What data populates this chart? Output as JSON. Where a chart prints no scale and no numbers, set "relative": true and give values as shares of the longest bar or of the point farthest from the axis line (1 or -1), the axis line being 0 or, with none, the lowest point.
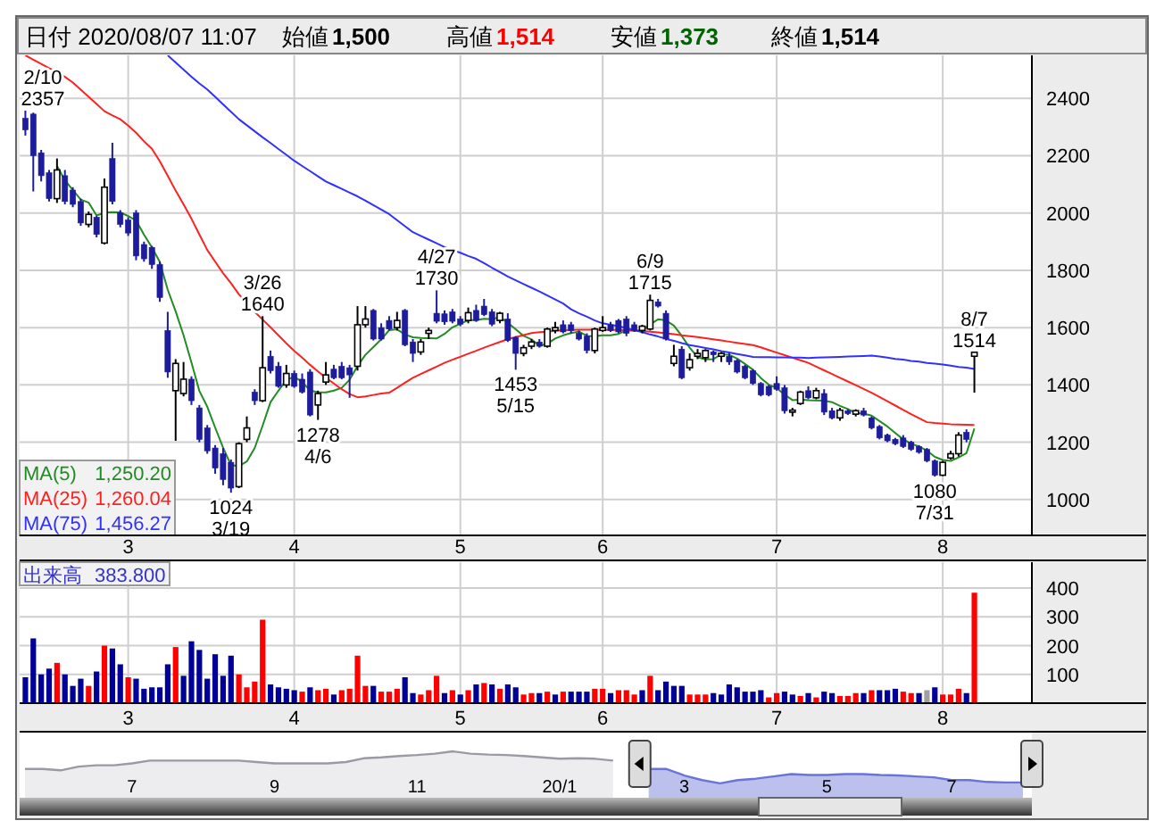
{
  "chart_data": [
    {
      "type": "other",
      "annotations": [
        "日付 2020/08/07 11:07",
        "始値",
        "1,500",
        "高値",
        "1,514",
        "安値",
        "1,373",
        "終値",
        "1,514"
      ],
      "colors": [
        "#000000",
        "#000000",
        "#000000",
        "#000000",
        "#ff0000",
        "#000000",
        "#006400",
        "#000000",
        "#000000"
      ]
    },
    {
      "type": "candlestick",
      "categories": [
        null,
        null,
        null,
        null,
        null,
        null,
        null,
        null,
        null,
        null,
        null,
        null,
        null,
        "3",
        null,
        null,
        null,
        null,
        null,
        null,
        null,
        null,
        null,
        null,
        null,
        null,
        null,
        null,
        null,
        null,
        null,
        null,
        null,
        null,
        "4",
        null,
        null,
        null,
        null,
        null,
        null,
        null,
        null,
        null,
        null,
        null,
        null,
        null,
        null,
        null,
        null,
        null,
        null,
        null,
        null,
        "5",
        null,
        null,
        null,
        null,
        null,
        null,
        null,
        null,
        null,
        null,
        null,
        null,
        null,
        null,
        null,
        null,
        null,
        "6",
        null,
        null,
        null,
        null,
        null,
        null,
        null,
        null,
        null,
        null,
        null,
        null,
        null,
        null,
        null,
        null,
        null,
        null,
        null,
        null,
        null,
        "7",
        null,
        null,
        null,
        null,
        null,
        null,
        null,
        null,
        null,
        null,
        null,
        null,
        null,
        null,
        null,
        null,
        null,
        null,
        null,
        null,
        "8",
        null,
        null,
        null,
        null
      ],
      "ohlc": [
        [
          2330,
          2357,
          2270,
          2290
        ],
        [
          2345,
          2350,
          2075,
          2200
        ],
        [
          2210,
          2220,
          2110,
          2130
        ],
        [
          2140,
          2150,
          2040,
          2050
        ],
        [
          2050,
          2190,
          2035,
          2150
        ],
        [
          2130,
          2150,
          2030,
          2040
        ],
        [
          2080,
          2090,
          2020,
          2030
        ],
        [
          2040,
          2050,
          1955,
          1965
        ],
        [
          1960,
          2005,
          1950,
          1995
        ],
        [
          1985,
          1990,
          1915,
          1925
        ],
        [
          1895,
          2120,
          1890,
          2090
        ],
        [
          2190,
          2245,
          2030,
          2040
        ],
        [
          2000,
          2010,
          1950,
          1960
        ],
        [
          1975,
          1985,
          1920,
          1930
        ],
        [
          2000,
          2010,
          1835,
          1850
        ],
        [
          1890,
          1900,
          1830,
          1840
        ],
        [
          1880,
          1885,
          1805,
          1820
        ],
        [
          1820,
          1830,
          1690,
          1705
        ],
        [
          1590,
          1655,
          1425,
          1445
        ],
        [
          1380,
          1490,
          1205,
          1475
        ],
        [
          1370,
          1480,
          1360,
          1420
        ],
        [
          1420,
          1430,
          1330,
          1345
        ],
        [
          1320,
          1330,
          1200,
          1210
        ],
        [
          1250,
          1260,
          1160,
          1170
        ],
        [
          1180,
          1190,
          1090,
          1110
        ],
        [
          1160,
          1180,
          1050,
          1070
        ],
        [
          1130,
          1140,
          1024,
          1040
        ],
        [
          1045,
          1200,
          1040,
          1195
        ],
        [
          1210,
          1290,
          1200,
          1250
        ],
        [
          1375,
          1385,
          1330,
          1345
        ],
        [
          1345,
          1640,
          1340,
          1460
        ],
        [
          1500,
          1520,
          1440,
          1450
        ],
        [
          1465,
          1480,
          1390,
          1395
        ],
        [
          1400,
          1470,
          1390,
          1440
        ],
        [
          1440,
          1450,
          1390,
          1395
        ],
        [
          1420,
          1440,
          1370,
          1375
        ],
        [
          1445,
          1455,
          1290,
          1295
        ],
        [
          1330,
          1380,
          1278,
          1370
        ],
        [
          1410,
          1480,
          1400,
          1435
        ],
        [
          1455,
          1470,
          1420,
          1425
        ],
        [
          1465,
          1480,
          1420,
          1425
        ],
        [
          1460,
          1470,
          1355,
          1435
        ],
        [
          1465,
          1675,
          1450,
          1610
        ],
        [
          1610,
          1675,
          1600,
          1630
        ],
        [
          1660,
          1665,
          1555,
          1560
        ],
        [
          1600,
          1615,
          1555,
          1560
        ],
        [
          1625,
          1640,
          1590,
          1595
        ],
        [
          1600,
          1655,
          1590,
          1625
        ],
        [
          1660,
          1665,
          1535,
          1540
        ],
        [
          1550,
          1560,
          1480,
          1510
        ],
        [
          1515,
          1560,
          1505,
          1550
        ],
        [
          1580,
          1600,
          1560,
          1590
        ],
        [
          1650,
          1730,
          1615,
          1622
        ],
        [
          1648,
          1660,
          1610,
          1620
        ],
        [
          1655,
          1665,
          1615,
          1622
        ],
        [
          1630,
          1640,
          1605,
          1612
        ],
        [
          1625,
          1670,
          1615,
          1652
        ],
        [
          1660,
          1680,
          1620,
          1625
        ],
        [
          1675,
          1700,
          1640,
          1645
        ],
        [
          1655,
          1665,
          1605,
          1612
        ],
        [
          1625,
          1655,
          1615,
          1650
        ],
        [
          1630,
          1650,
          1550,
          1555
        ],
        [
          1565,
          1570,
          1453,
          1510
        ],
        [
          1510,
          1540,
          1500,
          1530
        ],
        [
          1535,
          1560,
          1525,
          1550
        ],
        [
          1550,
          1560,
          1530,
          1535
        ],
        [
          1535,
          1600,
          1530,
          1595
        ],
        [
          1590,
          1620,
          1580,
          1600
        ],
        [
          1610,
          1625,
          1580,
          1585
        ],
        [
          1610,
          1620,
          1580,
          1590
        ],
        [
          1580,
          1590,
          1555,
          1560
        ],
        [
          1570,
          1580,
          1510,
          1520
        ],
        [
          1520,
          1600,
          1510,
          1595
        ],
        [
          1590,
          1640,
          1585,
          1600
        ],
        [
          1610,
          1620,
          1585,
          1590
        ],
        [
          1625,
          1630,
          1580,
          1585
        ],
        [
          1630,
          1640,
          1570,
          1580
        ],
        [
          1610,
          1620,
          1585,
          1590
        ],
        [
          1590,
          1610,
          1580,
          1605
        ],
        [
          1595,
          1715,
          1590,
          1695
        ],
        [
          1690,
          1700,
          1670,
          1675
        ],
        [
          1650,
          1660,
          1555,
          1560
        ],
        [
          1475,
          1540,
          1465,
          1500
        ],
        [
          1525,
          1535,
          1420,
          1425
        ],
        [
          1460,
          1510,
          1450,
          1488
        ],
        [
          1500,
          1525,
          1490,
          1510
        ],
        [
          1495,
          1525,
          1480,
          1520
        ],
        [
          1515,
          1520,
          1480,
          1505
        ],
        [
          1500,
          1515,
          1480,
          1510
        ],
        [
          1500,
          1510,
          1470,
          1480
        ],
        [
          1485,
          1490,
          1440,
          1445
        ],
        [
          1465,
          1470,
          1420,
          1425
        ],
        [
          1450,
          1455,
          1400,
          1405
        ],
        [
          1405,
          1410,
          1360,
          1365
        ],
        [
          1395,
          1400,
          1360,
          1365
        ],
        [
          1405,
          1430,
          1380,
          1385
        ],
        [
          1390,
          1400,
          1300,
          1310
        ],
        [
          1305,
          1320,
          1290,
          1312
        ],
        [
          1335,
          1380,
          1330,
          1375
        ],
        [
          1380,
          1395,
          1350,
          1355
        ],
        [
          1355,
          1390,
          1350,
          1380
        ],
        [
          1370,
          1385,
          1295,
          1305
        ],
        [
          1310,
          1320,
          1280,
          1285
        ],
        [
          1285,
          1320,
          1275,
          1312
        ],
        [
          1310,
          1315,
          1295,
          1300
        ],
        [
          1298,
          1315,
          1290,
          1310
        ],
        [
          1310,
          1320,
          1290,
          1295
        ],
        [
          1285,
          1290,
          1245,
          1250
        ],
        [
          1255,
          1260,
          1210,
          1215
        ],
        [
          1225,
          1230,
          1200,
          1205
        ],
        [
          1210,
          1215,
          1190,
          1195
        ],
        [
          1215,
          1225,
          1180,
          1185
        ],
        [
          1200,
          1205,
          1170,
          1175
        ],
        [
          1185,
          1190,
          1160,
          1165
        ],
        [
          1175,
          1180,
          1130,
          1135
        ],
        [
          1135,
          1140,
          1080,
          1085
        ],
        [
          1085,
          1135,
          1082,
          1130
        ],
        [
          1145,
          1170,
          1140,
          1160
        ],
        [
          1160,
          1235,
          1150,
          1225
        ],
        [
          1235,
          1245,
          1200,
          1210
        ],
        [
          1500,
          1514,
          1373,
          1514
        ]
      ],
      "series": [
        {
          "type": "line",
          "name": "MA(5)",
          "color": "#228b22",
          "values": [
            null,
            null,
            null,
            null,
            2164,
            2114,
            2080,
            2047,
            2036,
            1991,
            2001,
            2003,
            2002,
            1989,
            1974,
            1924,
            1880,
            1829,
            1732,
            1657,
            1573,
            1478,
            1379,
            1324,
            1251,
            1181,
            1120,
            1117,
            1133,
            1180,
            1258,
            1340,
            1380,
            1418,
            1428,
            1411,
            1380,
            1375,
            1374,
            1380,
            1390,
            1418,
            1466,
            1505,
            1532,
            1559,
            1591,
            1594,
            1576,
            1566,
            1564,
            1563,
            1562,
            1578,
            1601,
            1613,
            1626,
            1626,
            1631,
            1629,
            1637,
            1617,
            1594,
            1571,
            1559,
            1536,
            1544,
            1562,
            1573,
            1581,
            1586,
            1571,
            1570,
            1573,
            1573,
            1578,
            1590,
            1589,
            1590,
            1611,
            1629,
            1625,
            1607,
            1571,
            1530,
            1497,
            1489,
            1490,
            1507,
            1505,
            1492,
            1473,
            1453,
            1424,
            1401,
            1389,
            1366,
            1347,
            1349,
            1347,
            1346,
            1345,
            1340,
            1327,
            1316,
            1302,
            1300,
            1293,
            1274,
            1255,
            1232,
            1210,
            1195,
            1185,
            1171,
            1149,
            1138,
            1135,
            1147,
            1162,
            1248
          ]
        },
        {
          "type": "line",
          "name": "MA(25)",
          "color": "#ff2020",
          "values": [
            2550,
            2535,
            2520,
            2505,
            2493,
            2475,
            2455,
            2430,
            2405,
            2380,
            2355,
            2340,
            2327,
            2305,
            2280,
            2250,
            2224,
            2180,
            2130,
            2078,
            2030,
            1980,
            1925,
            1871,
            1830,
            1790,
            1755,
            1716,
            1685,
            1655,
            1628,
            1601,
            1573,
            1545,
            1519,
            1495,
            1470,
            1447,
            1425,
            1405,
            1385,
            1368,
            1357,
            1360,
            1365,
            1370,
            1373,
            1390,
            1408,
            1425,
            1438,
            1451,
            1464,
            1477,
            1488,
            1498,
            1509,
            1519,
            1530,
            1540,
            1550,
            1560,
            1567,
            1574,
            1581,
            1584,
            1586,
            1589,
            1591,
            1592,
            1593,
            1593,
            1593,
            1593,
            1592,
            1592,
            1591,
            1591,
            1588,
            1586,
            1583,
            1580,
            1577,
            1573,
            1570,
            1567,
            1563,
            1559,
            1555,
            1551,
            1547,
            1543,
            1539,
            1531,
            1522,
            1513,
            1504,
            1495,
            1486,
            1477,
            1464,
            1451,
            1438,
            1425,
            1412,
            1399,
            1386,
            1373,
            1358,
            1343,
            1328,
            1313,
            1298,
            1284,
            1270,
            1267,
            1265,
            1263,
            1262,
            1261,
            1260
          ]
        },
        {
          "type": "line",
          "name": "MA(75)",
          "color": "#3030ff",
          "values": [
            null,
            null,
            null,
            null,
            null,
            null,
            null,
            null,
            null,
            null,
            null,
            null,
            null,
            null,
            null,
            null,
            null,
            null,
            2550,
            2525,
            2500,
            2475,
            2452,
            2431,
            2405,
            2379,
            2353,
            2327,
            2306,
            2285,
            2264,
            2244,
            2223,
            2203,
            2182,
            2164,
            2146,
            2128,
            2110,
            2097,
            2084,
            2071,
            2058,
            2043,
            2027,
            2012,
            1996,
            1975,
            1954,
            1933,
            1920,
            1907,
            1894,
            1881,
            1871,
            1861,
            1850,
            1840,
            1825,
            1809,
            1794,
            1778,
            1765,
            1752,
            1739,
            1726,
            1712,
            1698,
            1684,
            1664,
            1650,
            1638,
            1625,
            1615,
            1610,
            1605,
            1598,
            1591,
            1584,
            1576,
            1569,
            1561,
            1554,
            1546,
            1539,
            1534,
            1529,
            1524,
            1518,
            1513,
            1508,
            1503,
            1498,
            1497,
            1497,
            1496,
            1496,
            1495,
            1495,
            1494,
            1495,
            1496,
            1497,
            1498,
            1499,
            1500,
            1501,
            1502,
            1499,
            1495,
            1491,
            1488,
            1484,
            1481,
            1477,
            1474,
            1471,
            1467,
            1463,
            1460,
            1456
          ]
        }
      ],
      "ylim": [
        875,
        2550
      ],
      "yticks": [
        1000,
        1200,
        1400,
        1600,
        1800,
        2000,
        2200,
        2400
      ],
      "grid": true,
      "legend": "bottom left",
      "annotations": [
        {
          "text": "2/10 2357",
          "y": 2357
        },
        {
          "text": "1024 3/19",
          "y": 1024
        },
        {
          "text": "3/26 1640",
          "y": 1640
        },
        {
          "text": "1278 4/6",
          "y": 1278
        },
        {
          "text": "4/27 1730",
          "y": 1730
        },
        {
          "text": "1453 5/15",
          "y": 1453
        },
        {
          "text": "6/9 1715",
          "y": 1715
        },
        {
          "text": "1080 7/31",
          "y": 1080
        },
        {
          "text": "8/7 1514",
          "y": 1514
        },
        "1,250.20",
        "1,260.04",
        "1,456.27"
      ]
    },
    {
      "type": "bar",
      "title": "出来高",
      "annotations": [
        "383.800"
      ],
      "categories": [
        null,
        null,
        null,
        null,
        null,
        null,
        null,
        null,
        null,
        null,
        null,
        null,
        null,
        "3",
        null,
        null,
        null,
        null,
        null,
        null,
        null,
        null,
        null,
        null,
        null,
        null,
        null,
        null,
        null,
        null,
        null,
        null,
        null,
        null,
        "4",
        null,
        null,
        null,
        null,
        null,
        null,
        null,
        null,
        null,
        null,
        null,
        null,
        null,
        null,
        null,
        null,
        null,
        null,
        null,
        null,
        "5",
        null,
        null,
        null,
        null,
        null,
        null,
        null,
        null,
        null,
        null,
        null,
        null,
        null,
        null,
        null,
        null,
        null,
        "6",
        null,
        null,
        null,
        null,
        null,
        null,
        null,
        null,
        null,
        null,
        null,
        null,
        null,
        null,
        null,
        null,
        null,
        null,
        null,
        null,
        null,
        "7",
        null,
        null,
        null,
        null,
        null,
        null,
        null,
        null,
        null,
        null,
        null,
        null,
        null,
        null,
        null,
        null,
        null,
        null,
        null,
        null,
        "8",
        null,
        null,
        null,
        null
      ],
      "values": [
        90,
        225,
        100,
        120,
        140,
        100,
        60,
        85,
        60,
        110,
        200,
        190,
        135,
        90,
        85,
        50,
        55,
        55,
        135,
        195,
        95,
        215,
        185,
        85,
        170,
        95,
        165,
        100,
        55,
        75,
        290,
        65,
        55,
        50,
        45,
        40,
        55,
        45,
        50,
        30,
        45,
        50,
        165,
        60,
        60,
        40,
        40,
        50,
        90,
        35,
        30,
        45,
        95,
        35,
        45,
        30,
        45,
        65,
        70,
        65,
        50,
        65,
        55,
        30,
        35,
        35,
        40,
        30,
        40,
        40,
        40,
        40,
        50,
        50,
        35,
        45,
        45,
        30,
        45,
        95,
        45,
        75,
        60,
        60,
        30,
        30,
        30,
        35,
        30,
        65,
        55,
        40,
        40,
        45,
        20,
        35,
        40,
        30,
        25,
        35,
        20,
        40,
        35,
        25,
        25,
        35,
        35,
        45,
        45,
        45,
        50,
        40,
        35,
        35,
        45,
        55,
        30,
        30,
        50,
        35,
        383.8
      ],
      "colors": [
        "#000099",
        "#000099",
        "#000099",
        "#000099",
        "#ff0000",
        "#000099",
        "#000099",
        "#000099",
        "#ff0000",
        "#000099",
        "#ff0000",
        "#000099",
        "#000099",
        "#ff0000",
        "#000099",
        "#000099",
        "#000099",
        "#000099",
        "#000099",
        "#ff0000",
        "#000099",
        "#000099",
        "#000099",
        "#000099",
        "#000099",
        "#000099",
        "#000099",
        "#ff0000",
        "#ff0000",
        "#ff0000",
        "#ff0000",
        "#000099",
        "#000099",
        "#000099",
        "#000099",
        "#ff0000",
        "#000099",
        "#ff0000",
        "#ff0000",
        "#000099",
        "#ff0000",
        "#ff0000",
        "#ff0000",
        "#ff0000",
        "#000099",
        "#ff0000",
        "#ff0000",
        "#ff0000",
        "#000099",
        "#000099",
        "#ff0000",
        "#ff0000",
        "#ff0000",
        "#000099",
        "#ff0000",
        "#000099",
        "#ff0000",
        "#000099",
        "#ff0000",
        "#000099",
        "#ff0000",
        "#000099",
        "#000099",
        "#ff0000",
        "#ff0000",
        "#000099",
        "#ff0000",
        "#000099",
        "#ff0000",
        "#000099",
        "#000099",
        "#000099",
        "#ff0000",
        "#ff0000",
        "#000099",
        "#ff0000",
        "#ff0000",
        "#ff0000",
        "#000099",
        "#ff0000",
        "#000099",
        "#000099",
        "#000099",
        "#000099",
        "#ff0000",
        "#ff0000",
        "#ff0000",
        "#000099",
        "#000099",
        "#000099",
        "#000099",
        "#000099",
        "#000099",
        "#000099",
        "#ff0000",
        "#ff0000",
        "#000099",
        "#000099",
        "#ff0000",
        "#000099",
        "#ff0000",
        "#000099",
        "#000099",
        "#ff0000",
        "#ff0000",
        "#ff0000",
        "#000099",
        "#ff0000",
        "#000099",
        "#000099",
        "#000099",
        "#ff0000",
        "#ff0000",
        "#000099",
        "#a0a0a0",
        "#000099",
        "#ff0000",
        "#ff0000",
        "#ff0000",
        "#000099",
        "#ff0000"
      ],
      "ylim": [
        0,
        490
      ],
      "yticks": [
        100,
        200,
        300,
        400
      ],
      "grid": true
    },
    {
      "type": "area",
      "relative": true,
      "tick_labels": "x",
      "categories": [
        null,
        null,
        null,
        null,
        null,
        null,
        "7",
        null,
        null,
        null,
        null,
        null,
        null,
        null,
        "9",
        null,
        null,
        null,
        null,
        null,
        null,
        null,
        "11",
        null,
        null,
        null,
        null,
        null,
        null,
        null,
        "20/1",
        null,
        null,
        null,
        null,
        null,
        null,
        "3",
        null,
        null,
        null,
        null,
        null,
        null,
        null,
        "5",
        null,
        null,
        null,
        null,
        null,
        null,
        "7",
        null,
        null,
        null,
        null
      ],
      "series": [
        {
          "color": "#9a9aa6",
          "values": [
            0.62,
            0.62,
            0.59,
            0.67,
            0.7,
            0.7,
            0.74,
            0.8,
            0.8,
            0.8,
            0.8,
            0.8,
            0.8,
            0.77,
            0.74,
            0.74,
            0.74,
            0.74,
            0.77,
            0.85,
            0.87,
            0.9,
            0.92,
            0.95,
            1,
            0.95,
            0.93,
            0.92,
            0.9,
            0.87,
            0.84,
            0.85,
            0.84,
            0.8,
            null,
            null,
            null,
            null,
            null,
            null,
            null,
            null,
            null,
            null,
            null,
            null,
            null,
            null,
            null,
            null,
            null,
            null,
            null,
            null,
            null,
            null,
            null
          ]
        },
        {
          "color": "#6a74d8",
          "values": [
            null,
            null,
            null,
            null,
            null,
            null,
            null,
            null,
            null,
            null,
            null,
            null,
            null,
            null,
            null,
            null,
            null,
            null,
            null,
            null,
            null,
            null,
            null,
            null,
            null,
            null,
            null,
            null,
            null,
            null,
            null,
            null,
            null,
            null,
            null,
            0.62,
            0.62,
            0.48,
            0.38,
            0.31,
            0.38,
            0.41,
            0.46,
            0.51,
            0.49,
            0.49,
            0.51,
            0.51,
            0.49,
            0.48,
            0.46,
            0.44,
            0.38,
            0.38,
            0.34,
            0.33,
            0.33
          ]
        }
      ]
    }
  ]
}
